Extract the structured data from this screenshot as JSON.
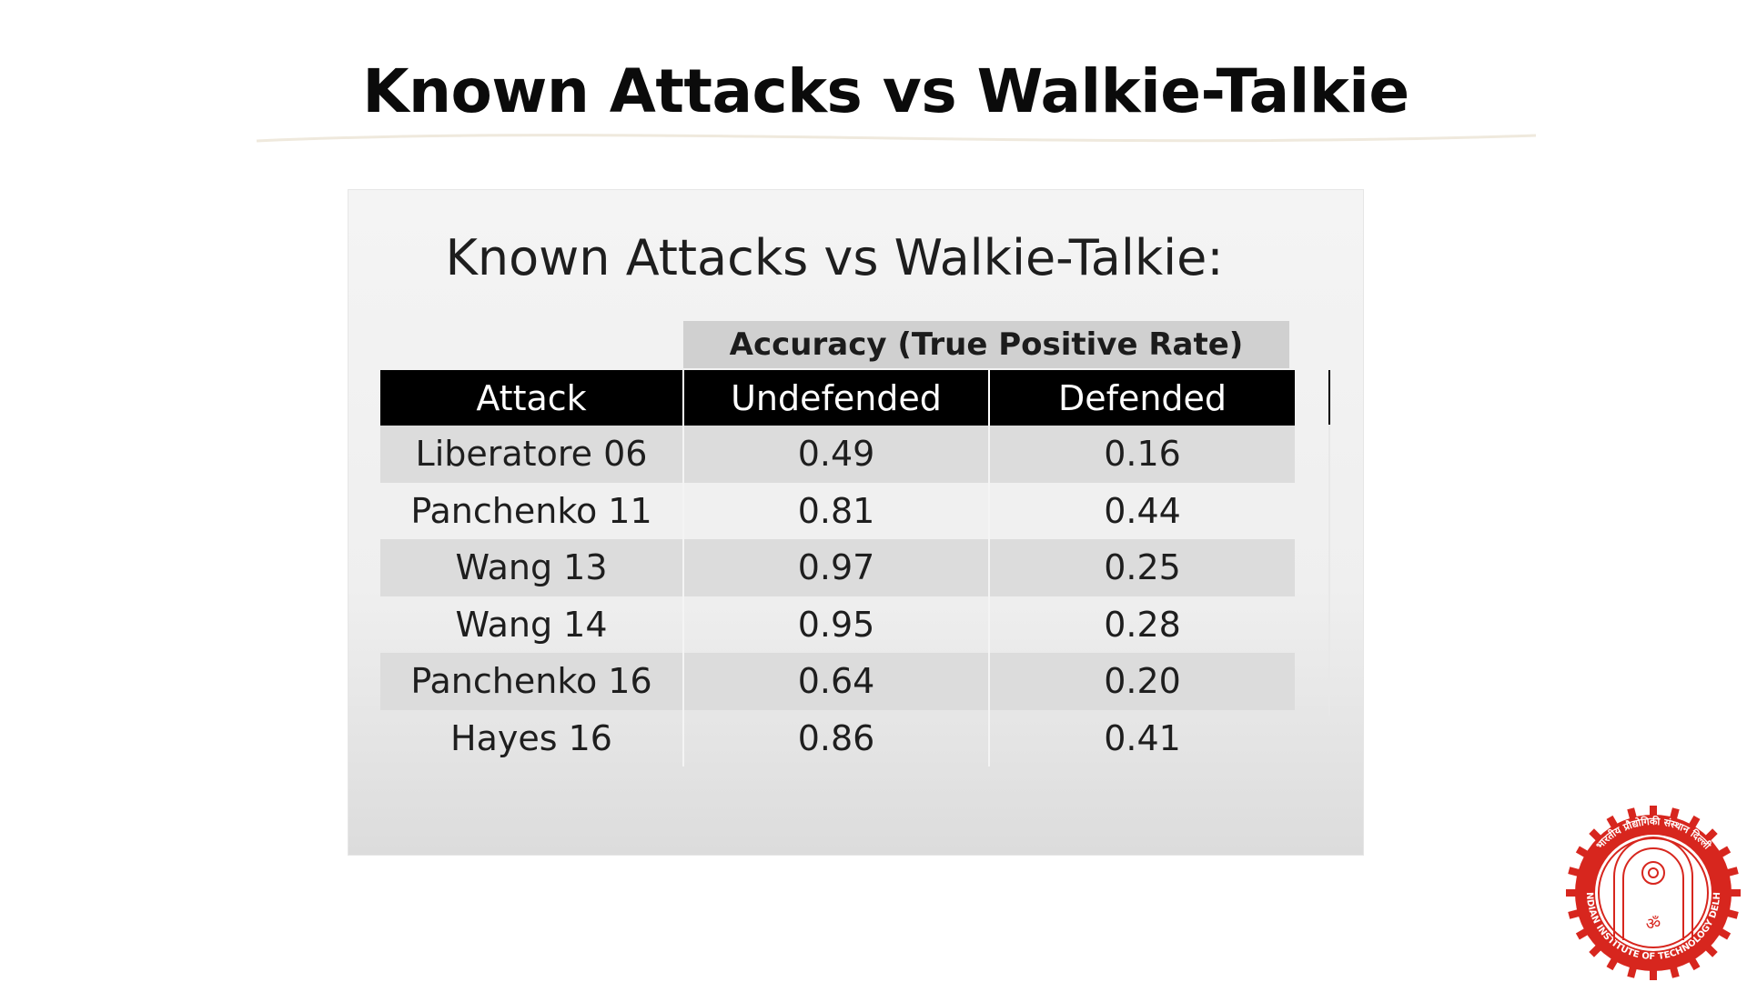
{
  "page": {
    "title": "Known Attacks vs Walkie-Talkie"
  },
  "slide": {
    "title": "Known Attacks vs Walkie-Talkie:",
    "group_header": "Accuracy (True Positive Rate)",
    "columns": [
      "Attack",
      "Undefended",
      "Defended"
    ],
    "rows": [
      [
        "Liberatore 06",
        "0.49",
        "0.16"
      ],
      [
        "Panchenko 11",
        "0.81",
        "0.44"
      ],
      [
        "Wang 13",
        "0.97",
        "0.25"
      ],
      [
        "Wang 14",
        "0.95",
        "0.28"
      ],
      [
        "Panchenko 16",
        "0.64",
        "0.20"
      ],
      [
        "Hayes 16",
        "0.86",
        "0.41"
      ]
    ]
  },
  "logo": {
    "text": "INDIAN INSTITUTE OF TECHNOLOGY DELHI",
    "hindi_text": "भारतीय प्रौद्योगिकी संस्थान दिल्ली",
    "motto": "ॐ"
  },
  "colors": {
    "header_bg": "#000000",
    "header_text": "#ffffff",
    "group_header_bg": "#d0d0d0",
    "shaded_row_bg": "#dcdcdc",
    "logo_red": "#d7261e"
  }
}
